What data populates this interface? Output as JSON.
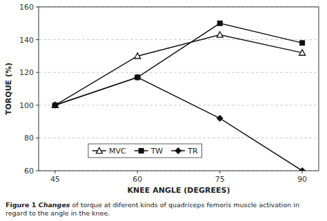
{
  "chart_data": {
    "type": "line",
    "x": [
      45,
      60,
      75,
      90
    ],
    "x_label": "KNEE ANGLE (DEGREES)",
    "y_label": "TORQUE (%)",
    "xlim": [
      42,
      93
    ],
    "ylim": [
      60,
      160
    ],
    "xticks": [
      45,
      60,
      75,
      90
    ],
    "yticks": [
      60,
      80,
      100,
      120,
      140,
      160
    ],
    "grid": "y",
    "legend": "lower center",
    "series": [
      {
        "name": "MVC",
        "color": "#111111",
        "marker": "triangle-open",
        "values": [
          100,
          130,
          143,
          132
        ]
      },
      {
        "name": "TW",
        "color": "#111111",
        "marker": "square",
        "values": [
          100,
          117,
          150,
          138
        ]
      },
      {
        "name": "TR",
        "color": "#111111",
        "marker": "diamond",
        "values": [
          100,
          117,
          92,
          60
        ]
      }
    ],
    "caption": [
      "Figure 1 ",
      "Changes",
      " of torque at diferent kinds of quadriceps femoris muscle activation in\nregard to the angle in the knee."
    ]
  }
}
